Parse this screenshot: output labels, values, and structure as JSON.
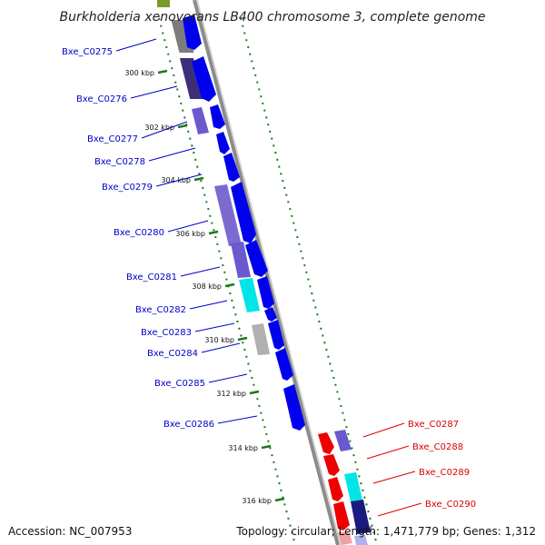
{
  "title": "Burkholderia xenovorans LB400 chromosome 3, complete genome",
  "footer": {
    "accession": "Accession: NC_007953",
    "summary": "Topology: circular; Length: 1,471,779 bp; Genes: 1,312"
  },
  "colors": {
    "forward": "#0000ee",
    "reverse": "#ee0000",
    "cyan": "#00e5e5",
    "purple": "#6a5acd",
    "dark_purple": "#3b2f7a",
    "gray": "#b0b0b0",
    "tick": "#1a7a1a",
    "backbone": "#8c8c8c",
    "label_blue": "#0000cc",
    "label_red": "#dd0000"
  },
  "ticks": [
    {
      "label": "300 kbp"
    },
    {
      "label": "302 kbp"
    },
    {
      "label": "304 kbp"
    },
    {
      "label": "306 kbp"
    },
    {
      "label": "308 kbp"
    },
    {
      "label": "310 kbp"
    },
    {
      "label": "312 kbp"
    },
    {
      "label": "314 kbp"
    },
    {
      "label": "316 kbp"
    }
  ],
  "genes_left": [
    {
      "label": "Bxe_C0275"
    },
    {
      "label": "Bxe_C0276"
    },
    {
      "label": "Bxe_C0277"
    },
    {
      "label": "Bxe_C0278"
    },
    {
      "label": "Bxe_C0279"
    },
    {
      "label": "Bxe_C0280"
    },
    {
      "label": "Bxe_C0281"
    },
    {
      "label": "Bxe_C0282"
    },
    {
      "label": "Bxe_C0283"
    },
    {
      "label": "Bxe_C0284"
    },
    {
      "label": "Bxe_C0285"
    },
    {
      "label": "Bxe_C0286"
    }
  ],
  "genes_right": [
    {
      "label": "Bxe_C0287"
    },
    {
      "label": "Bxe_C0288"
    },
    {
      "label": "Bxe_C0289"
    },
    {
      "label": "Bxe_C0290"
    }
  ]
}
